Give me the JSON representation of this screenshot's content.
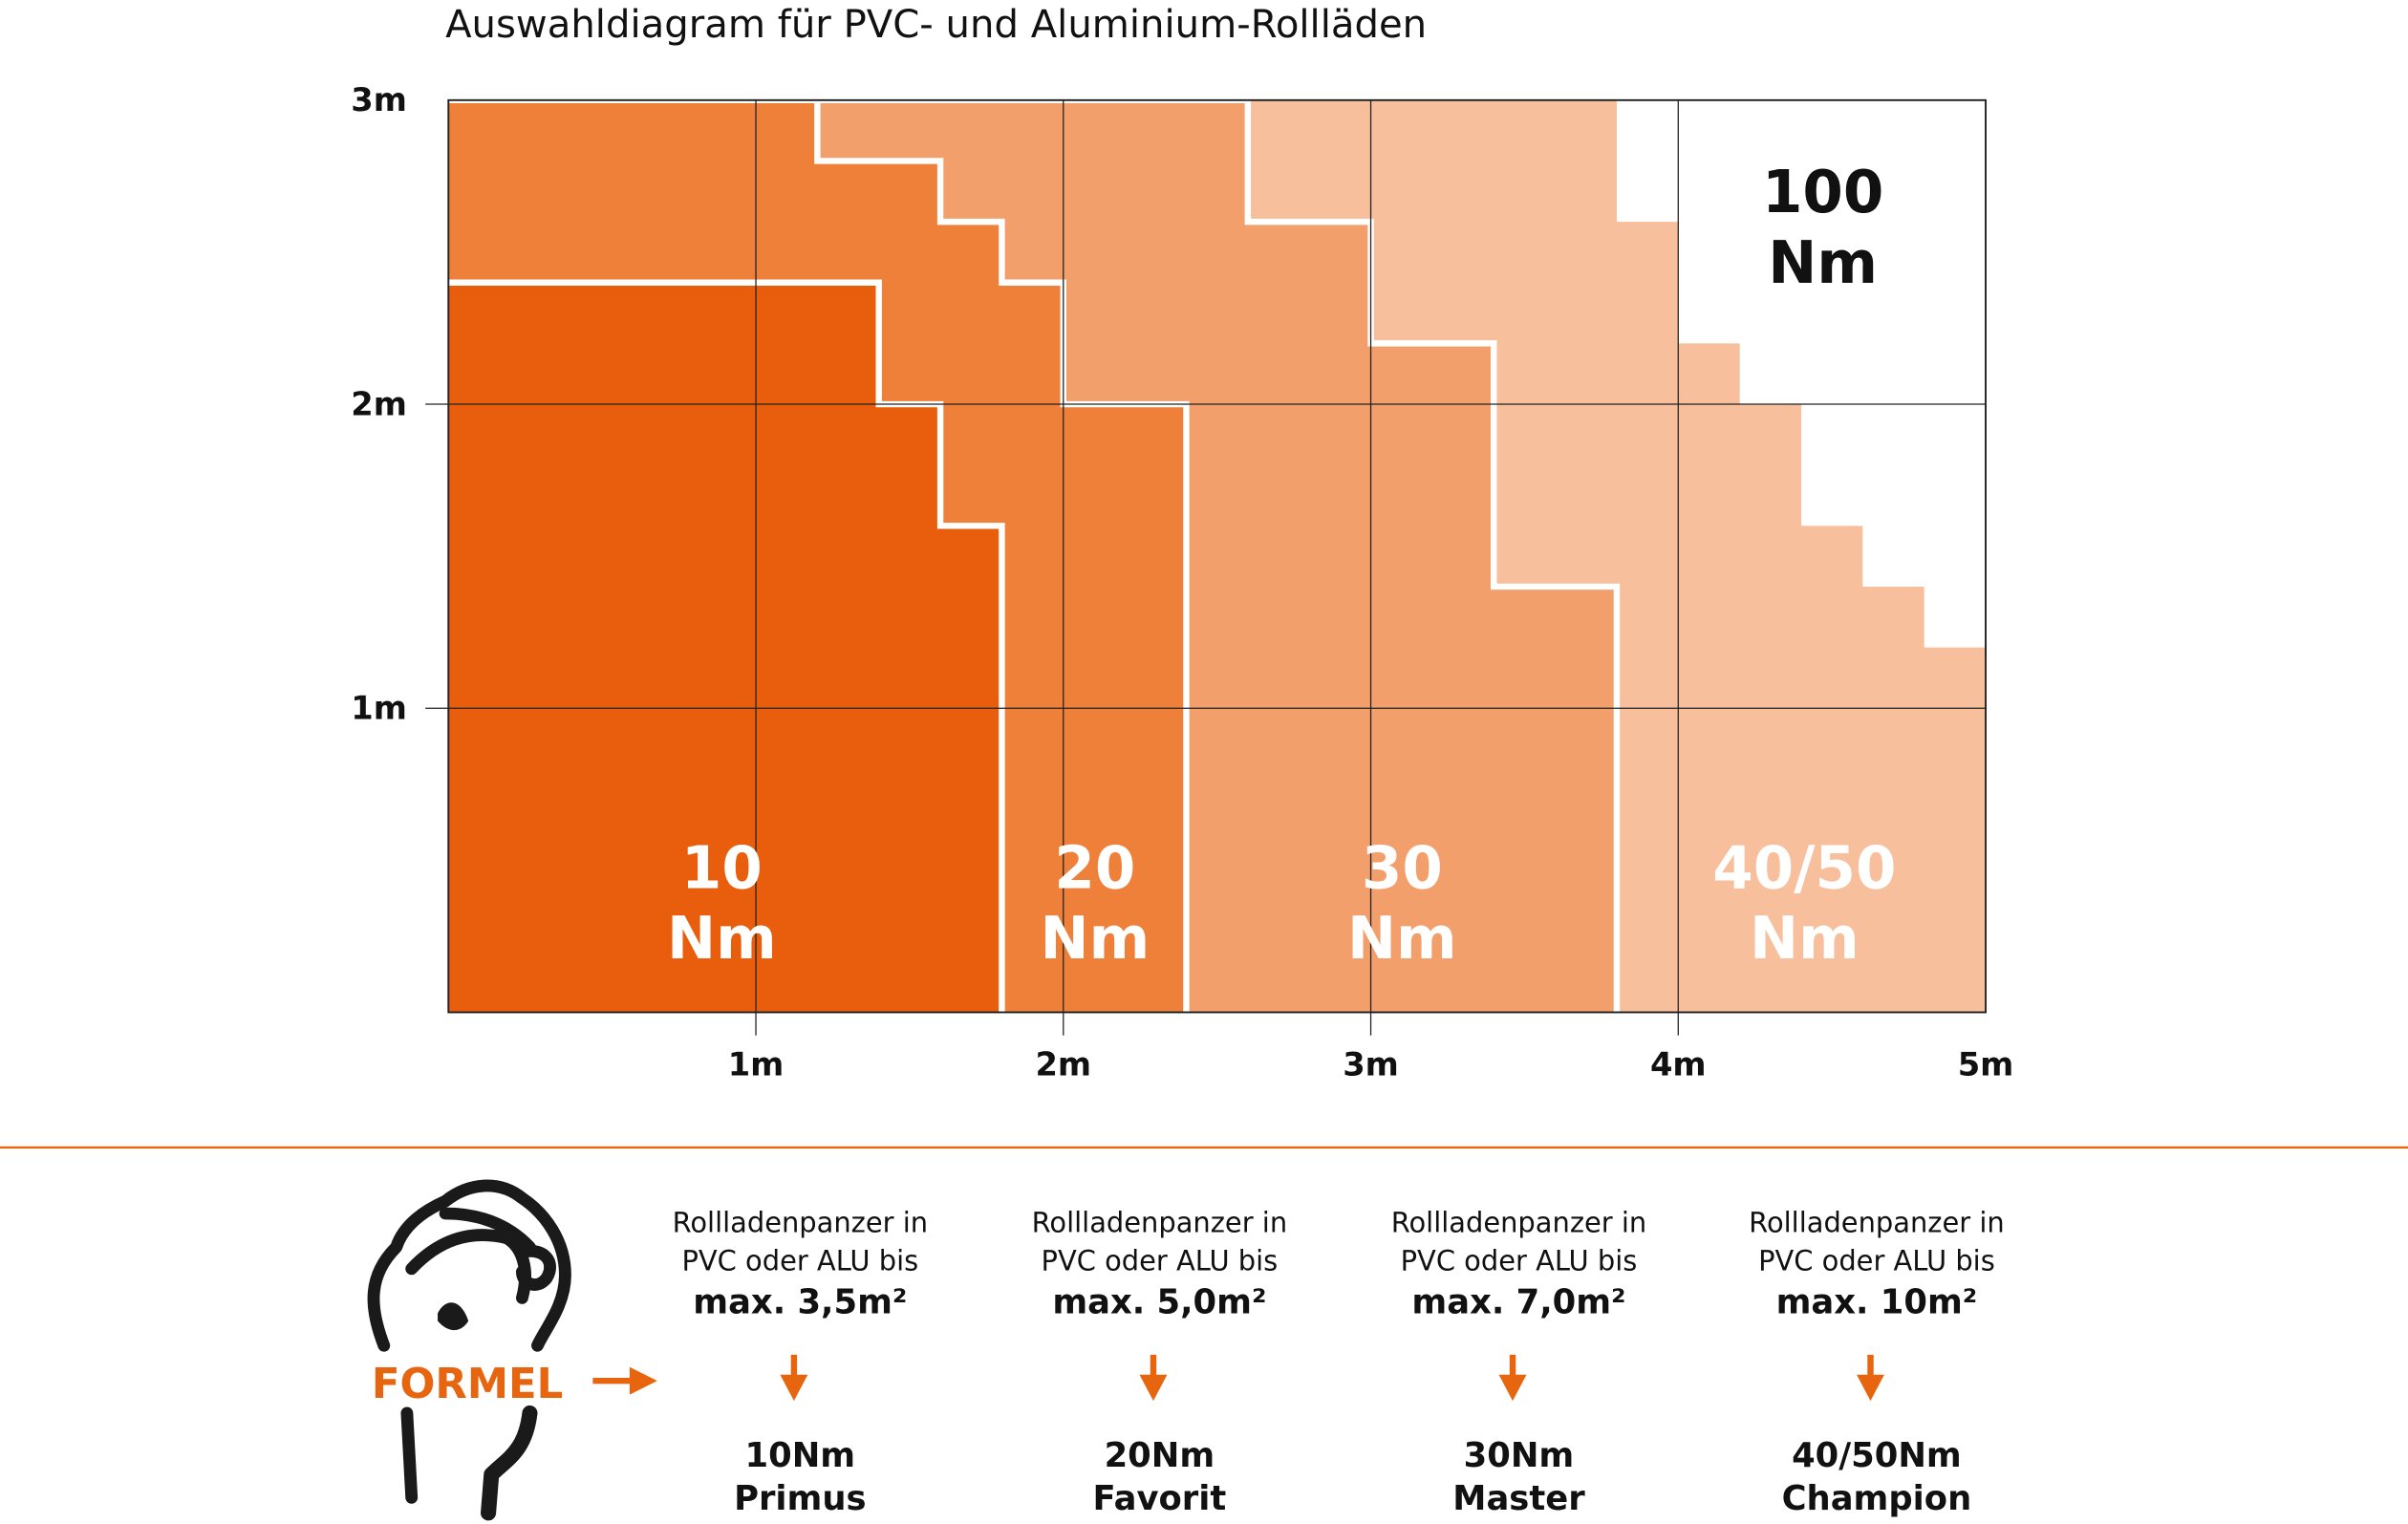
{
  "chart_data": {
    "type": "area",
    "title": "Auswahldiagram für PVC- und Aluminium-Rollläden",
    "xlim": [
      0,
      5
    ],
    "ylim": [
      0,
      3
    ],
    "x_ticks": [
      "1m",
      "2m",
      "3m",
      "4m",
      "5m"
    ],
    "y_ticks": [
      "1m",
      "2m",
      "3m"
    ],
    "grid": true,
    "regions": [
      {
        "name": "100 Nm",
        "label_line1": "100",
        "label_line2": "Nm",
        "color": "#ffffff",
        "boundary": []
      },
      {
        "name": "40/50 Nm",
        "label_line1": "40/50",
        "label_line2": "Nm",
        "color": "#f7bf9c",
        "boundary": [
          [
            0,
            3
          ],
          [
            3.8,
            3
          ],
          [
            3.8,
            2.6
          ],
          [
            4.0,
            2.6
          ],
          [
            4.0,
            2.2
          ],
          [
            4.2,
            2.2
          ],
          [
            4.2,
            2.0
          ],
          [
            4.4,
            2.0
          ],
          [
            4.4,
            1.6
          ],
          [
            4.6,
            1.6
          ],
          [
            4.6,
            1.4
          ],
          [
            4.8,
            1.4
          ],
          [
            4.8,
            1.2
          ],
          [
            5.0,
            1.2
          ],
          [
            5.0,
            0
          ]
        ]
      },
      {
        "name": "30 Nm",
        "label_line1": "30",
        "label_line2": "Nm",
        "color": "#f39f6c",
        "boundary": [
          [
            0,
            3
          ],
          [
            2.6,
            3
          ],
          [
            2.6,
            2.6
          ],
          [
            3.0,
            2.6
          ],
          [
            3.0,
            2.2
          ],
          [
            3.4,
            2.2
          ],
          [
            3.4,
            1.4
          ],
          [
            3.8,
            1.4
          ],
          [
            3.8,
            0
          ]
        ]
      },
      {
        "name": "20 Nm",
        "label_line1": "20",
        "label_line2": "Nm",
        "color": "#ef803a",
        "boundary": [
          [
            0,
            3
          ],
          [
            1.2,
            3
          ],
          [
            1.2,
            2.8
          ],
          [
            1.6,
            2.8
          ],
          [
            1.6,
            2.6
          ],
          [
            1.8,
            2.6
          ],
          [
            1.8,
            2.4
          ],
          [
            2.0,
            2.4
          ],
          [
            2.0,
            2.0
          ],
          [
            2.4,
            2.0
          ],
          [
            2.4,
            0
          ]
        ]
      },
      {
        "name": "10 Nm",
        "label_line1": "10",
        "label_line2": "Nm",
        "color": "#e95e0d",
        "boundary": [
          [
            0,
            2.4
          ],
          [
            1.4,
            2.4
          ],
          [
            1.4,
            2.0
          ],
          [
            1.6,
            2.0
          ],
          [
            1.6,
            1.6
          ],
          [
            1.8,
            1.6
          ],
          [
            1.8,
            0
          ]
        ]
      }
    ]
  },
  "footer": {
    "logo_text": "FORMEL",
    "accent_color": "#e8650f",
    "columns": [
      {
        "line1": "Rollladenpanzer in",
        "line2": "PVC oder ALU bis",
        "max": "max. 3,5m²",
        "torque": "10Nm",
        "model": "Primus"
      },
      {
        "line1": "Rollladenpanzer in",
        "line2": "PVC oder ALU bis",
        "max": "max. 5,0m²",
        "torque": "20Nm",
        "model": "Favorit"
      },
      {
        "line1": "Rollladenpanzer in",
        "line2": "PVC oder ALU bis",
        "max": "max. 7,0m²",
        "torque": "30Nm",
        "model": "Master"
      },
      {
        "line1": "Rollladenpanzer in",
        "line2": "PVC oder ALU bis",
        "max": "max. 10m²",
        "torque": "40/50Nm",
        "model": "Champion"
      }
    ]
  }
}
